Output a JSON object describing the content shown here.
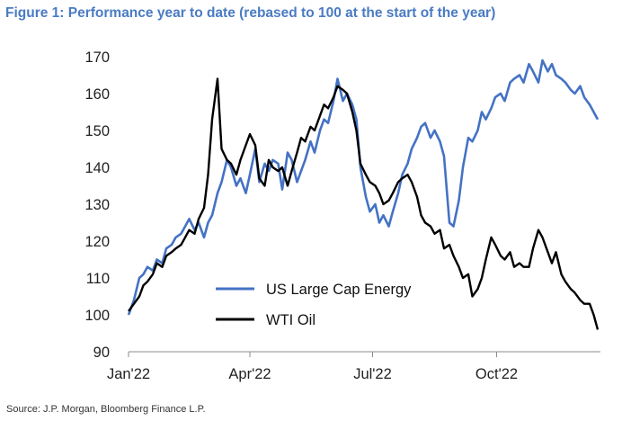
{
  "title": "Figure 1: Performance year to date (rebased to 100 at the start of the year)",
  "source": "Source: J.P. Morgan, Bloomberg Finance L.P.",
  "colors": {
    "title": "#4a7bc4",
    "energy": "#4472c4",
    "oil": "#000000"
  },
  "chart_data": {
    "type": "line",
    "title": "Figure 1: Performance year to date (rebased to 100 at the start of the year)",
    "x_ticks": [
      "Jan'22",
      "Apr'22",
      "Jul'22",
      "Oct'22"
    ],
    "x_tick_values": [
      0,
      90,
      181,
      273
    ],
    "y_ticks": [
      "90",
      "100",
      "110",
      "120",
      "130",
      "140",
      "150",
      "160",
      "170"
    ],
    "ylim": [
      90,
      170
    ],
    "xlim": [
      0,
      350
    ],
    "grid": false,
    "legend_position": "lower-center",
    "series": [
      {
        "name": "US Large Cap Energy",
        "color": "#4472c4",
        "x": [
          0,
          4,
          8,
          11,
          14,
          18,
          21,
          25,
          28,
          32,
          35,
          39,
          42,
          45,
          49,
          52,
          56,
          59,
          62,
          66,
          69,
          73,
          76,
          80,
          83,
          87,
          90,
          94,
          97,
          101,
          104,
          107,
          111,
          114,
          118,
          121,
          125,
          128,
          131,
          135,
          138,
          142,
          145,
          148,
          152,
          155,
          159,
          162,
          166,
          169,
          172,
          176,
          179,
          183,
          186,
          189,
          193,
          196,
          200,
          203,
          207,
          210,
          214,
          217,
          220,
          224,
          227,
          231,
          234,
          238,
          241,
          245,
          248,
          252,
          255,
          259,
          262,
          265,
          269,
          272,
          276,
          279,
          283,
          286,
          290,
          293,
          297,
          300,
          304,
          307,
          311,
          314,
          317,
          321,
          324,
          328,
          331,
          335,
          338,
          342,
          345,
          348
        ],
        "y": [
          100,
          104,
          110,
          111,
          113,
          112,
          115,
          114,
          118,
          119,
          121,
          122,
          124,
          126,
          123,
          125,
          121,
          125,
          127,
          133,
          136,
          142,
          140,
          135,
          137,
          133,
          138,
          145,
          136,
          141,
          139,
          142,
          141,
          134,
          144,
          142,
          136,
          139,
          142,
          147,
          144,
          150,
          153,
          152,
          158,
          164,
          158,
          160,
          157,
          153,
          140,
          132,
          128,
          130,
          125,
          127,
          124,
          128,
          133,
          138,
          141,
          145,
          148,
          151,
          152,
          148,
          150,
          147,
          143,
          125,
          124,
          131,
          140,
          148,
          147,
          150,
          155,
          153,
          156,
          159,
          160,
          158,
          163,
          164,
          165,
          163,
          168,
          166,
          163,
          169,
          166,
          168,
          165,
          164,
          163,
          161,
          160,
          162,
          159,
          157,
          155,
          153
        ]
      },
      {
        "name": "WTI Oil",
        "color": "#000000",
        "x": [
          0,
          4,
          8,
          11,
          14,
          18,
          21,
          25,
          28,
          32,
          35,
          39,
          42,
          45,
          49,
          52,
          56,
          59,
          62,
          66,
          69,
          73,
          76,
          80,
          83,
          87,
          90,
          94,
          97,
          101,
          104,
          107,
          111,
          114,
          118,
          121,
          125,
          128,
          131,
          135,
          138,
          142,
          145,
          148,
          152,
          155,
          159,
          162,
          166,
          169,
          172,
          176,
          179,
          183,
          186,
          189,
          193,
          196,
          200,
          203,
          207,
          210,
          214,
          217,
          220,
          224,
          227,
          231,
          234,
          238,
          241,
          245,
          248,
          252,
          255,
          259,
          262,
          265,
          269,
          272,
          276,
          279,
          283,
          286,
          290,
          293,
          297,
          300,
          304,
          307,
          311,
          314,
          317,
          321,
          324,
          328,
          331,
          335,
          338,
          342,
          345,
          348
        ],
        "y": [
          101,
          103,
          105,
          108,
          109,
          111,
          114,
          113,
          116,
          117,
          118,
          119,
          121,
          123,
          122,
          126,
          129,
          138,
          153,
          164,
          145,
          142,
          141,
          138,
          142,
          146,
          149,
          146,
          137,
          135,
          142,
          140,
          139,
          140,
          135,
          139,
          144,
          148,
          147,
          151,
          150,
          154,
          157,
          156,
          159,
          162,
          161,
          160,
          155,
          150,
          141,
          138,
          136,
          135,
          133,
          130,
          131,
          133,
          136,
          137,
          138,
          136,
          132,
          127,
          125,
          124,
          122,
          123,
          118,
          119,
          116,
          113,
          110,
          111,
          105,
          107,
          110,
          115,
          121,
          119,
          116,
          115,
          117,
          113,
          114,
          113,
          113,
          118,
          123,
          121,
          117,
          114,
          117,
          111,
          109,
          107,
          106,
          104,
          103,
          103,
          100,
          96
        ]
      }
    ]
  }
}
